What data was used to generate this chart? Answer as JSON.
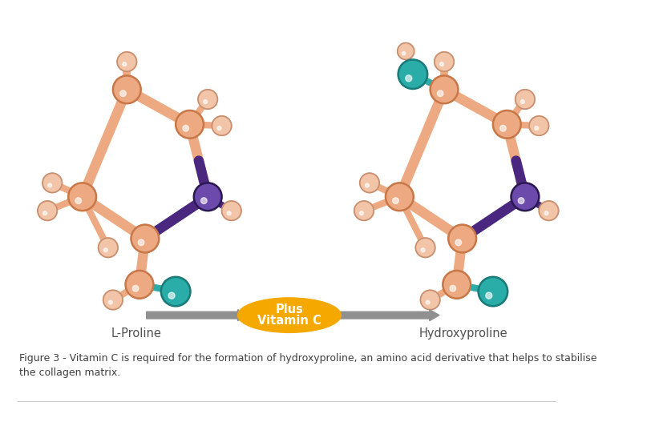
{
  "bg_color": "#ffffff",
  "peach": "#EDAA82",
  "peach_light": "#F2C4A8",
  "peach_dark": "#D88A60",
  "teal": "#2AADA8",
  "teal_dark": "#1A8A85",
  "purple": "#4A2880",
  "purple_mid": "#5B3A9C",
  "purple_light": "#6B4AAC",
  "atom_outline": "#C87848",
  "teal_outline": "#1A7A78",
  "purple_outline": "#2A1850",
  "small_atom_color": "#F0C0A0",
  "small_atom_outline": "#C89070",
  "arrow_gray": "#808080",
  "oval_color": "#F5A800",
  "text_dark": "#505050",
  "caption_color": "#404040",
  "lproline_label": "L-Proline",
  "hydroxyproline_label": "Hydroxyproline",
  "caption": "Figure 3 - Vitamin C is required for the formation of hydroxyproline, an amino acid derivative that helps to stabilise\nthe collagen matrix."
}
